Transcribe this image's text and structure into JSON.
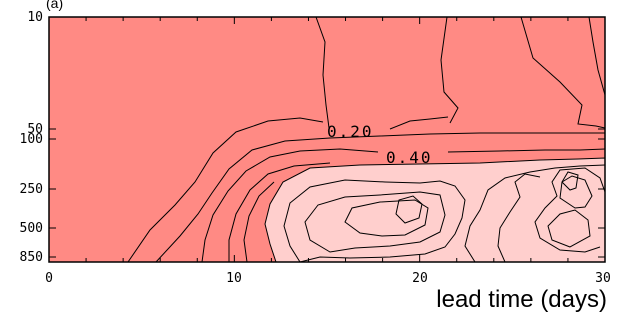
{
  "chart_data": {
    "type": "contour",
    "corner_label": "(a)",
    "xlabel": "lead time (days)",
    "ylabel": "",
    "xlim": [
      0,
      30
    ],
    "x_ticks": [
      "0",
      "10",
      "20",
      "30"
    ],
    "y_scale": "log (pressure)",
    "ylim": [
      10,
      850
    ],
    "y_ticks": [
      "10",
      "50",
      "100",
      "250",
      "500",
      "850"
    ],
    "fill_colors": {
      "below_0.40": "#ff8a84",
      "above_0.40": "#ffcfcd"
    },
    "contour_line_color": "#000000",
    "contour_labels": [
      {
        "text": "0.20",
        "lead_time": 16,
        "pressure": 115
      },
      {
        "text": "0.40",
        "lead_time": 18.5,
        "pressure": 175
      }
    ],
    "grid": false
  }
}
